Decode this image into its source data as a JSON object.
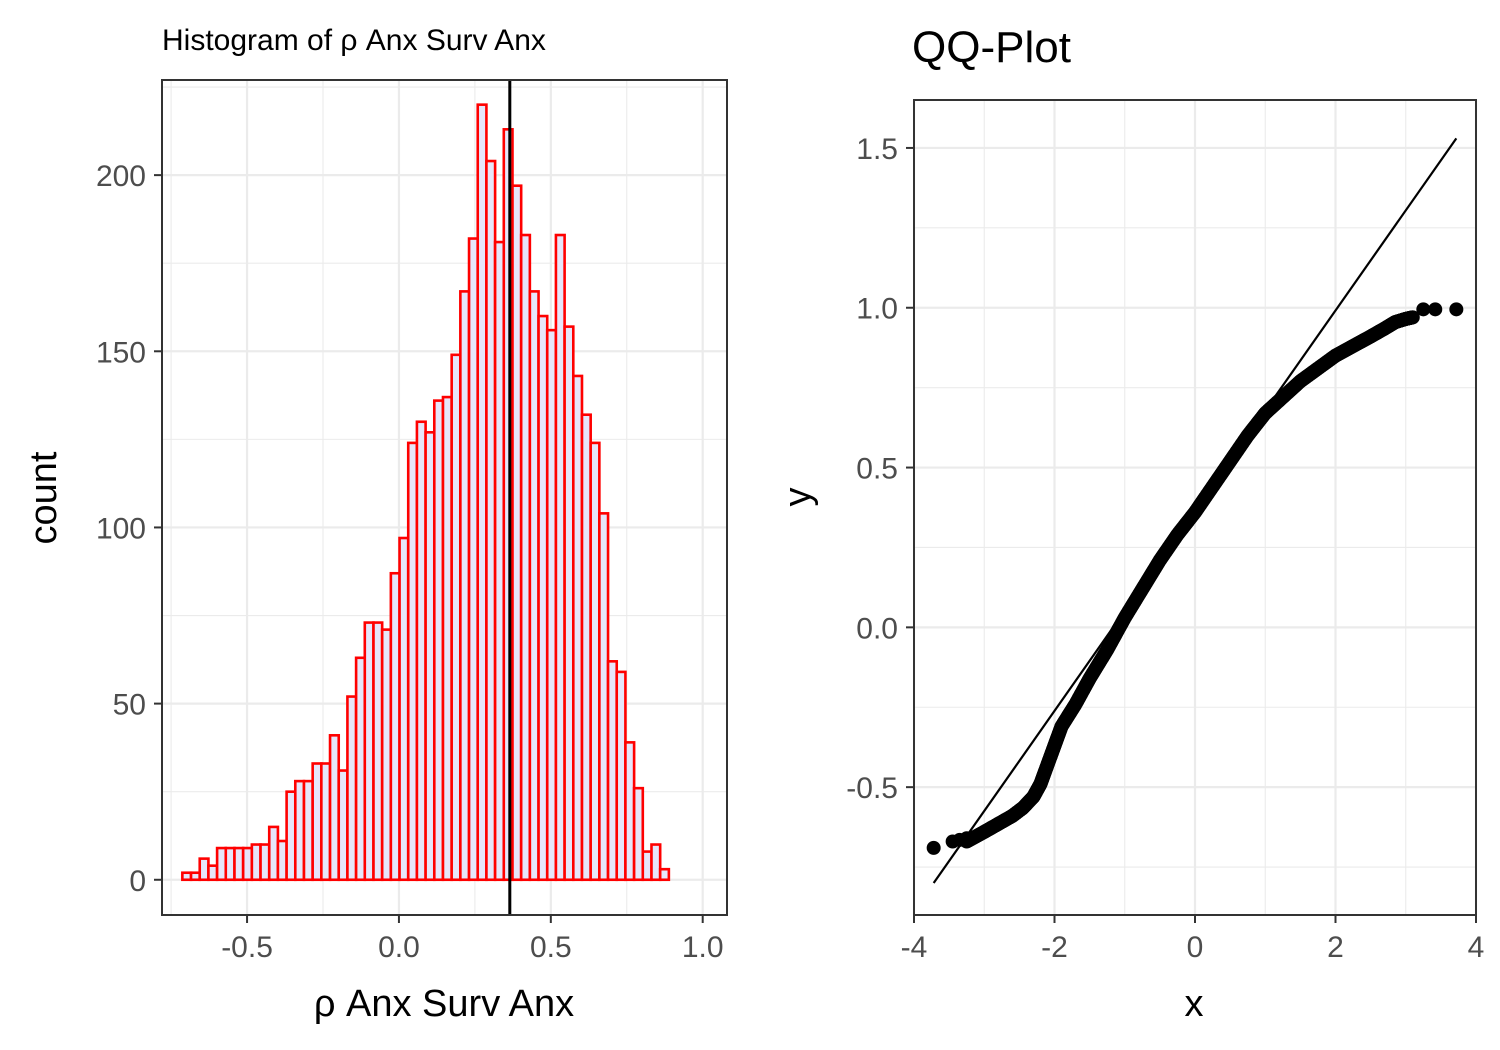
{
  "chart_data": [
    {
      "type": "bar",
      "title": "Histogram of ρ Anx Surv Anx",
      "xlabel": "ρ Anx Surv Anx",
      "ylabel": "count",
      "xlim": [
        -0.78,
        1.08
      ],
      "ylim": [
        -10,
        227
      ],
      "x_ticks": [
        -0.5,
        0.0,
        0.5,
        1.0
      ],
      "x_tick_labels": [
        "-0.5",
        "0.0",
        "0.5",
        "1.0"
      ],
      "y_ticks": [
        0,
        50,
        100,
        150,
        200
      ],
      "y_tick_labels": [
        "0",
        "50",
        "100",
        "150",
        "200"
      ],
      "grid": true,
      "fill_color": "#e6e6fa",
      "edge_color": "#ff0000",
      "vline": {
        "x": 0.365,
        "color": "#000000"
      },
      "bin_edges_start": -0.713,
      "bin_width": 0.0286,
      "values": [
        2,
        2,
        6,
        4,
        9,
        9,
        9,
        9,
        10,
        10,
        15,
        11,
        25,
        28,
        28,
        33,
        33,
        41,
        31,
        52,
        63,
        73,
        73,
        71,
        87,
        97,
        124,
        130,
        127,
        136,
        137,
        149,
        167,
        182,
        220,
        204,
        181,
        213,
        197,
        183,
        167,
        160,
        156,
        183,
        157,
        143,
        132,
        124,
        104,
        62,
        59,
        39,
        26,
        8,
        10,
        3
      ]
    },
    {
      "type": "scatter",
      "title": "QQ-Plot",
      "xlabel": "x",
      "ylabel": "y",
      "xlim": [
        -4.0,
        4.0
      ],
      "ylim": [
        -0.9,
        1.65
      ],
      "x_ticks": [
        -4,
        -2,
        0,
        2,
        4
      ],
      "x_tick_labels": [
        "-4",
        "-2",
        "0",
        "2",
        "4"
      ],
      "y_ticks": [
        -0.5,
        0.0,
        0.5,
        1.0,
        1.5
      ],
      "y_tick_labels": [
        "-0.5",
        "0.0",
        "0.5",
        "1.0",
        "1.5"
      ],
      "grid": true,
      "point_color": "#000000",
      "reference_line": {
        "x": [
          -3.72,
          3.72
        ],
        "y": [
          -0.8,
          1.53
        ]
      },
      "quantile_curve": [
        [
          -3.25,
          -0.67
        ],
        [
          -3.0,
          -0.64
        ],
        [
          -2.8,
          -0.615
        ],
        [
          -2.6,
          -0.59
        ],
        [
          -2.45,
          -0.565
        ],
        [
          -2.3,
          -0.53
        ],
        [
          -2.2,
          -0.49
        ],
        [
          -2.1,
          -0.43
        ],
        [
          -2.0,
          -0.37
        ],
        [
          -1.9,
          -0.31
        ],
        [
          -1.7,
          -0.24
        ],
        [
          -1.5,
          -0.16
        ],
        [
          -1.25,
          -0.07
        ],
        [
          -1.0,
          0.03
        ],
        [
          -0.75,
          0.12
        ],
        [
          -0.5,
          0.21
        ],
        [
          -0.25,
          0.29
        ],
        [
          0.0,
          0.36
        ],
        [
          0.25,
          0.44
        ],
        [
          0.5,
          0.52
        ],
        [
          0.75,
          0.6
        ],
        [
          1.0,
          0.67
        ],
        [
          1.25,
          0.72
        ],
        [
          1.5,
          0.77
        ],
        [
          1.75,
          0.81
        ],
        [
          2.0,
          0.85
        ],
        [
          2.25,
          0.88
        ],
        [
          2.5,
          0.91
        ],
        [
          2.7,
          0.935
        ],
        [
          2.85,
          0.955
        ],
        [
          3.0,
          0.965
        ],
        [
          3.1,
          0.97
        ]
      ],
      "tail_points": [
        [
          -3.72,
          -0.69
        ],
        [
          -3.45,
          -0.67
        ],
        [
          -3.35,
          -0.665
        ],
        [
          -3.25,
          -0.66
        ],
        [
          3.25,
          0.995
        ],
        [
          3.42,
          0.995
        ],
        [
          3.72,
          0.995
        ]
      ]
    }
  ]
}
